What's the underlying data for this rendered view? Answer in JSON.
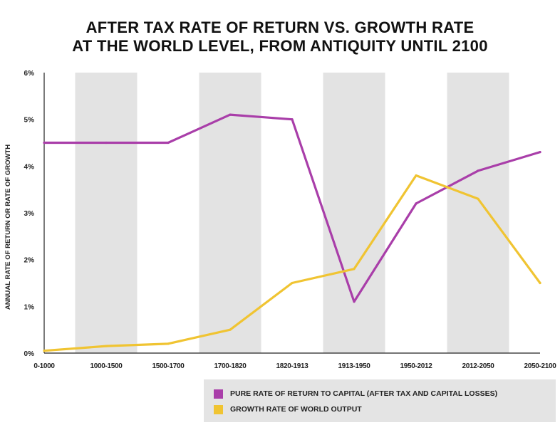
{
  "title_lines": [
    "AFTER TAX RATE OF RETURN VS. GROWTH RATE",
    "AT THE WORLD LEVEL, FROM ANTIQUITY UNTIL 2100"
  ],
  "colors": {
    "return": "#a93ea9",
    "growth": "#f0c432",
    "band": "#e3e3e3",
    "axis": "#222222"
  },
  "legend": [
    {
      "label": "PURE RATE OF RETURN TO CAPITAL (AFTER TAX AND CAPITAL LOSSES)",
      "color": "#a93ea9"
    },
    {
      "label": "GROWTH RATE OF WORLD OUTPUT",
      "color": "#f0c432"
    }
  ],
  "chart_data": {
    "type": "line",
    "title": "AFTER TAX RATE OF RETURN VS. GROWTH RATE AT THE WORLD LEVEL, FROM ANTIQUITY UNTIL 2100",
    "xlabel": "",
    "ylabel": "ANNUAL RATE OF RETURN OR RATE OF GROWTH",
    "categories": [
      "0-1000",
      "1000-1500",
      "1500-1700",
      "1700-1820",
      "1820-1913",
      "1913-1950",
      "1950-2012",
      "2012-2050",
      "2050-2100"
    ],
    "y_ticks": [
      "0%",
      "1%",
      "2%",
      "3%",
      "4%",
      "5%",
      "6%"
    ],
    "ylim": [
      0,
      6
    ],
    "grid": false,
    "alternating_bands": true,
    "legend_position": "bottom-right",
    "series": [
      {
        "name": "PURE RATE OF RETURN TO CAPITAL (AFTER TAX AND CAPITAL LOSSES)",
        "values": [
          4.5,
          4.5,
          4.5,
          5.1,
          5.0,
          1.1,
          3.2,
          3.9,
          4.3
        ]
      },
      {
        "name": "GROWTH RATE OF WORLD OUTPUT",
        "values": [
          0.05,
          0.15,
          0.2,
          0.5,
          1.5,
          1.8,
          3.8,
          3.3,
          1.5
        ]
      }
    ]
  }
}
